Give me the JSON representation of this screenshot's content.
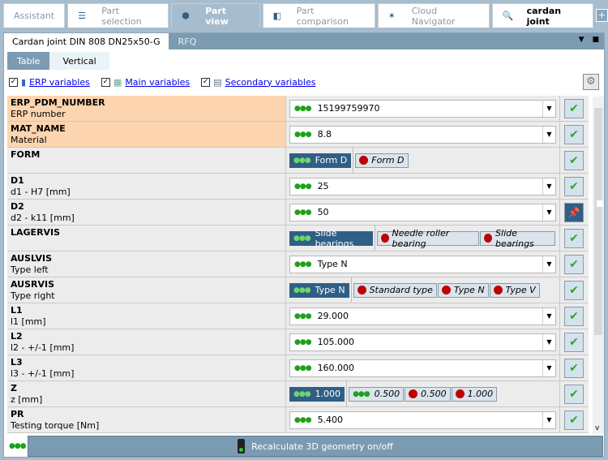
{
  "top_tabs": [
    {
      "label": "Assistant",
      "icon": "none",
      "active": false
    },
    {
      "label": "Part selection",
      "icon": "database-icon",
      "active": false
    },
    {
      "label": "Part view",
      "icon": "cube-icon",
      "active": true
    },
    {
      "label": "Part comparison",
      "icon": "compare-icon",
      "active": false
    },
    {
      "label": "Cloud Navigator",
      "icon": "network-icon",
      "active": false
    },
    {
      "label": "cardan joint",
      "icon": "search-abc-icon",
      "active": false
    }
  ],
  "add_tab": "+",
  "doc_tabs": [
    "Cardan joint DIN 808 DN25x50-G",
    "RFQ"
  ],
  "sub_tabs": [
    "Table",
    "Vertical"
  ],
  "filters": [
    "ERP variables",
    "Main variables",
    "Secondary variables"
  ],
  "colors": {
    "accent": "#2f5f86",
    "erp_row": "#fcd5b0",
    "ok": "#2fa52f",
    "invalid": "#c00000"
  },
  "rows": [
    {
      "name": "ERP_PDM_NUMBER",
      "desc": "ERP number",
      "erp": true,
      "type": "combo",
      "value": "15199759970",
      "button": "check"
    },
    {
      "name": "MAT_NAME",
      "desc": "Material",
      "erp": true,
      "type": "combo",
      "value": "8.8",
      "button": "check"
    },
    {
      "name": "FORM",
      "desc": "",
      "type": "chips",
      "selected": "Form D",
      "options": [
        {
          "label": "Form D",
          "valid": false
        }
      ],
      "button": "check"
    },
    {
      "name": "D1",
      "desc": "d1 - H7 [mm]",
      "type": "combo",
      "value": "25",
      "button": "check"
    },
    {
      "name": "D2",
      "desc": "d2 - k11 [mm]",
      "type": "combo",
      "value": "50",
      "button": "pin"
    },
    {
      "name": "LAGERVIS",
      "desc": "",
      "type": "chips",
      "selected": "Slide bearings",
      "options": [
        {
          "label": "Needle roller bearing",
          "valid": false
        },
        {
          "label": "Slide bearings",
          "valid": false
        }
      ],
      "button": "check"
    },
    {
      "name": "AUSLVIS",
      "desc": "Type left",
      "type": "combo",
      "value": "Type N",
      "button": "check"
    },
    {
      "name": "AUSRVIS",
      "desc": "Type right",
      "type": "chips",
      "selected": "Type N",
      "options": [
        {
          "label": "Standard type",
          "valid": false
        },
        {
          "label": "Type N",
          "valid": false
        },
        {
          "label": "Type V",
          "valid": false
        }
      ],
      "button": "check"
    },
    {
      "name": "L1",
      "desc": "l1 [mm]",
      "type": "combo",
      "value": "29.000",
      "button": "check"
    },
    {
      "name": "L2",
      "desc": "l2 - +/-1 [mm]",
      "type": "combo",
      "value": "105.000",
      "button": "check"
    },
    {
      "name": "L3",
      "desc": "l3 - +/-1 [mm]",
      "type": "combo",
      "value": "160.000",
      "button": "check"
    },
    {
      "name": "Z",
      "desc": "z [mm]",
      "type": "chips",
      "selected": "1.000",
      "options": [
        {
          "label": "0.500",
          "valid": true
        },
        {
          "label": "0.500",
          "valid": false
        },
        {
          "label": "1.000",
          "valid": false
        }
      ],
      "button": "check"
    },
    {
      "name": "PR",
      "desc": "Testing torque [Nm]",
      "type": "combo",
      "value": "5.400",
      "button": "check"
    }
  ],
  "recalc_label": "Recalculate 3D geometry on/off"
}
